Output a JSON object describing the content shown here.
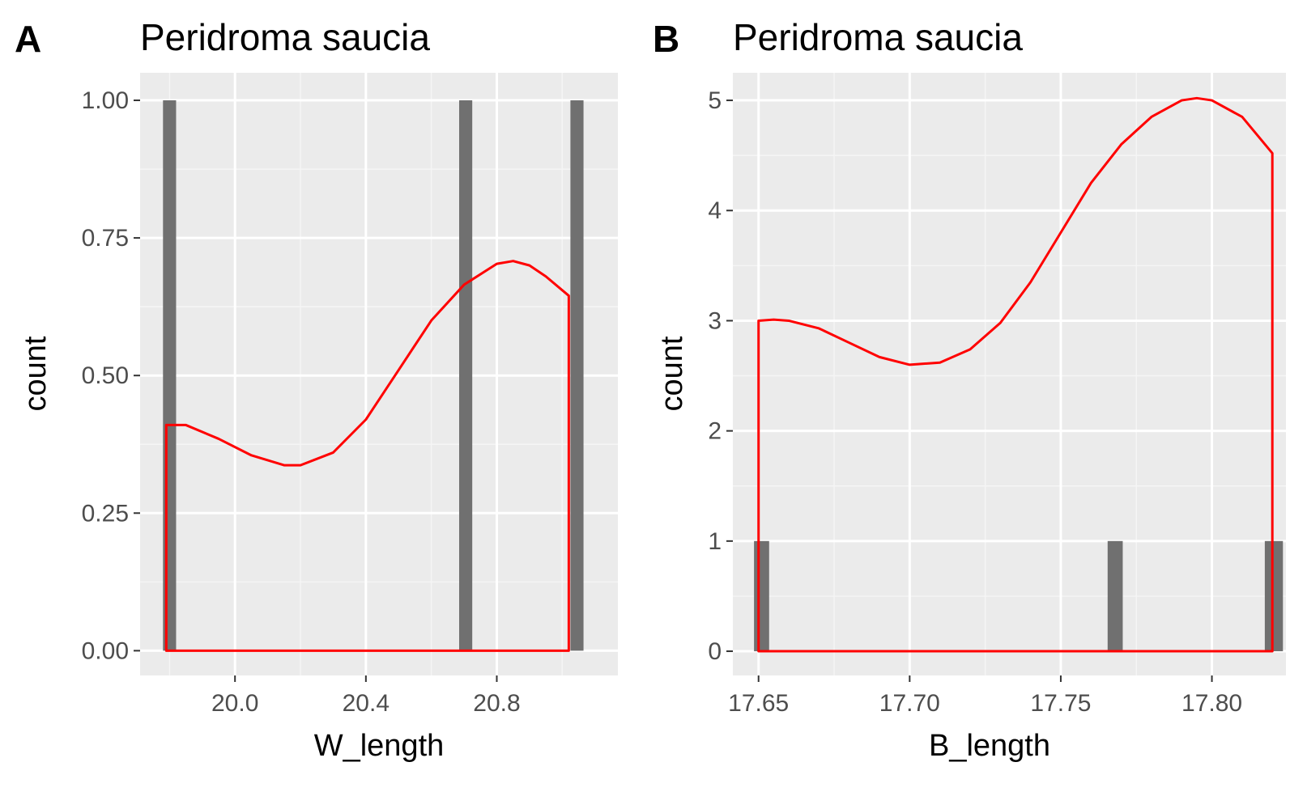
{
  "chart_data": [
    {
      "type": "bar",
      "panel_label": "A",
      "title": "Peridroma saucia",
      "xlabel": "W_length",
      "ylabel": "count",
      "xlim": [
        19.71,
        21.17
      ],
      "ylim": [
        -0.045,
        1.05
      ],
      "xticks": [
        20.0,
        20.4,
        20.8
      ],
      "xtick_labels": [
        "20.0",
        "20.4",
        "20.8"
      ],
      "yticks": [
        0,
        0.25,
        0.5,
        0.75,
        1.0
      ],
      "ytick_labels": [
        "0.00",
        "0.25",
        "0.50",
        "0.75",
        "1.00"
      ],
      "grid": true,
      "bars": [
        {
          "x0": 19.78,
          "x1": 19.82,
          "count": 1
        },
        {
          "x0": 20.685,
          "x1": 20.725,
          "count": 1
        },
        {
          "x0": 21.025,
          "x1": 21.065,
          "count": 1
        }
      ],
      "density_color": "#ff0000",
      "bar_color": "#707070",
      "density_curve": {
        "x": [
          19.79,
          19.85,
          19.95,
          20.05,
          20.15,
          20.2,
          20.3,
          20.4,
          20.5,
          20.6,
          20.7,
          20.8,
          20.85,
          20.9,
          20.95,
          21.02
        ],
        "y": [
          0.41,
          0.41,
          0.385,
          0.355,
          0.337,
          0.337,
          0.36,
          0.42,
          0.51,
          0.6,
          0.665,
          0.703,
          0.708,
          0.7,
          0.68,
          0.645
        ]
      }
    },
    {
      "type": "bar",
      "panel_label": "B",
      "title": "Peridroma saucia",
      "xlabel": "B_length",
      "ylabel": "count",
      "xlim": [
        17.6415,
        17.8245
      ],
      "ylim": [
        -0.22,
        5.25
      ],
      "xticks": [
        17.65,
        17.7,
        17.75,
        17.8
      ],
      "xtick_labels": [
        "17.65",
        "17.70",
        "17.75",
        "17.80"
      ],
      "yticks": [
        0,
        1,
        2,
        3,
        4,
        5
      ],
      "ytick_labels": [
        "0",
        "1",
        "2",
        "3",
        "4",
        "5"
      ],
      "grid": true,
      "bars": [
        {
          "x0": 17.6485,
          "x1": 17.6535,
          "count": 1
        },
        {
          "x0": 17.7655,
          "x1": 17.7705,
          "count": 1
        },
        {
          "x0": 17.8175,
          "x1": 17.8235,
          "count": 1
        }
      ],
      "density_color": "#ff0000",
      "bar_color": "#707070",
      "density_curve": {
        "x": [
          17.65,
          17.655,
          17.66,
          17.67,
          17.68,
          17.69,
          17.7,
          17.71,
          17.72,
          17.73,
          17.74,
          17.75,
          17.76,
          17.77,
          17.78,
          17.79,
          17.795,
          17.8,
          17.81,
          17.82
        ],
        "y": [
          3.0,
          3.01,
          3.0,
          2.93,
          2.8,
          2.67,
          2.6,
          2.62,
          2.74,
          2.98,
          3.35,
          3.8,
          4.25,
          4.6,
          4.85,
          5.0,
          5.02,
          5.0,
          4.85,
          4.52
        ]
      }
    }
  ]
}
